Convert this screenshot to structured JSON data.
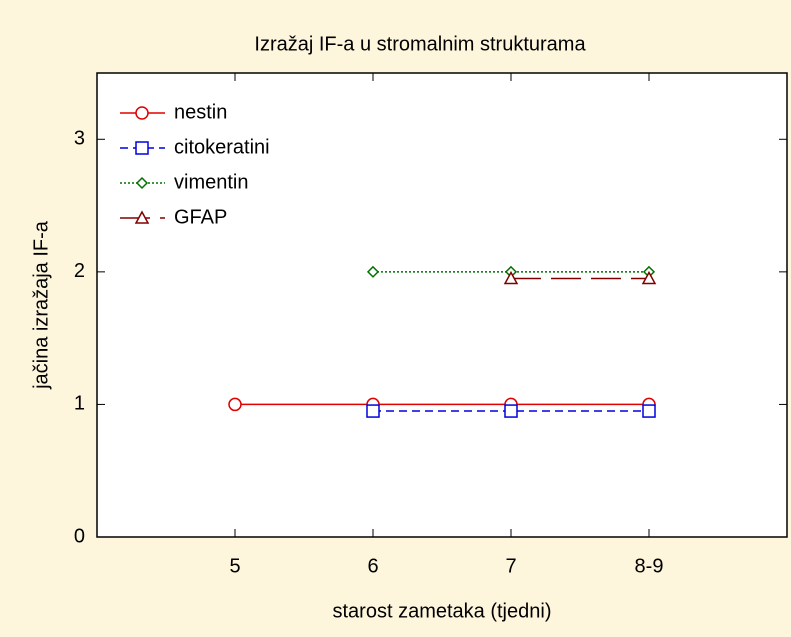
{
  "chart_data": {
    "type": "line",
    "title": "Izražaj IF-a u stromalnim strukturama",
    "x_label": "starost zametaka (tjedni)",
    "y_label": "jačina izražaja IF-a",
    "categories": [
      "5",
      "6",
      "7",
      "8-9"
    ],
    "series": [
      {
        "name": "nestin",
        "color": "#e00000",
        "marker": "circle",
        "dash": "solid",
        "values": [
          1,
          1,
          1,
          1
        ]
      },
      {
        "name": "citokeratini",
        "color": "#0000e0",
        "marker": "square",
        "dash": "dashed",
        "values": [
          null,
          0.95,
          0.95,
          0.95
        ]
      },
      {
        "name": "vimentin",
        "color": "#007000",
        "marker": "diamond",
        "dash": "dotted",
        "values": [
          null,
          2,
          2,
          2
        ]
      },
      {
        "name": "GFAP",
        "color": "#800000",
        "marker": "triangle",
        "dash": "longdash",
        "values": [
          null,
          null,
          1.95,
          1.95
        ]
      }
    ],
    "ylim": [
      0,
      3.5
    ],
    "yticks": [
      0,
      1,
      2,
      3
    ],
    "legend": "upper left"
  }
}
